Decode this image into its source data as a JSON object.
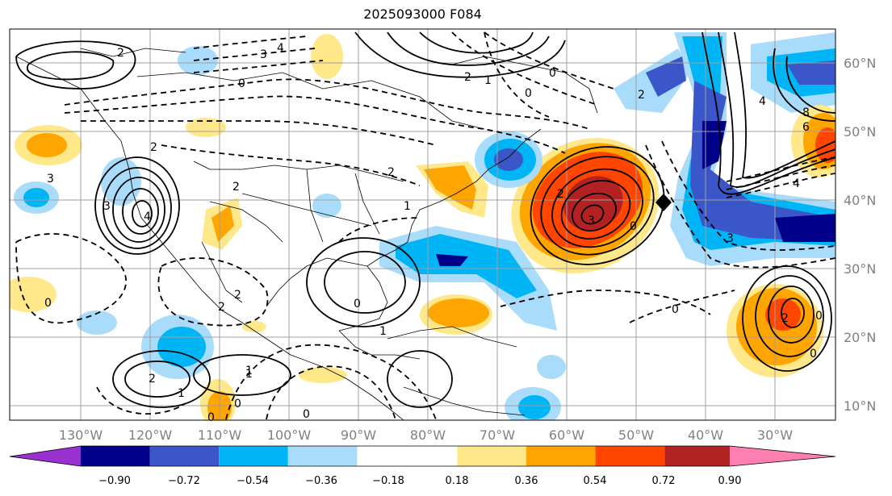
{
  "title": "2025093000 F084",
  "map": {
    "lon_labels": [
      "130°W",
      "120°W",
      "110°W",
      "100°W",
      "90°W",
      "80°W",
      "70°W",
      "60°W",
      "50°W",
      "40°W",
      "30°W"
    ],
    "lat_labels": [
      "60°N",
      "50°N",
      "40°N",
      "30°N",
      "20°N",
      "10°N"
    ],
    "contour_labels": [
      "2",
      "3",
      "4",
      "0",
      "2",
      "1",
      "0",
      "2",
      "3",
      "4",
      "3",
      "2",
      "0",
      "2",
      "1",
      "0",
      "1",
      "2",
      "0",
      "1",
      "0",
      "2",
      "3",
      "4",
      "6",
      "8",
      "4",
      "3",
      "2",
      "0",
      "0",
      "2",
      "2",
      "1",
      "0",
      "0",
      "2",
      "1",
      "0",
      "0"
    ]
  },
  "colorbar": {
    "tick_labels": [
      "−0.90",
      "−0.72",
      "−0.54",
      "−0.36",
      "−0.18",
      "0.18",
      "0.36",
      "0.54",
      "0.72",
      "0.90"
    ],
    "colors": [
      "#9b30d0",
      "#00008b",
      "#3a56c8",
      "#00b5f5",
      "#a9dcfa",
      "#ffffff",
      "#ffe88a",
      "#ffa500",
      "#ff4500",
      "#b22222",
      "#ff80b0"
    ]
  }
}
